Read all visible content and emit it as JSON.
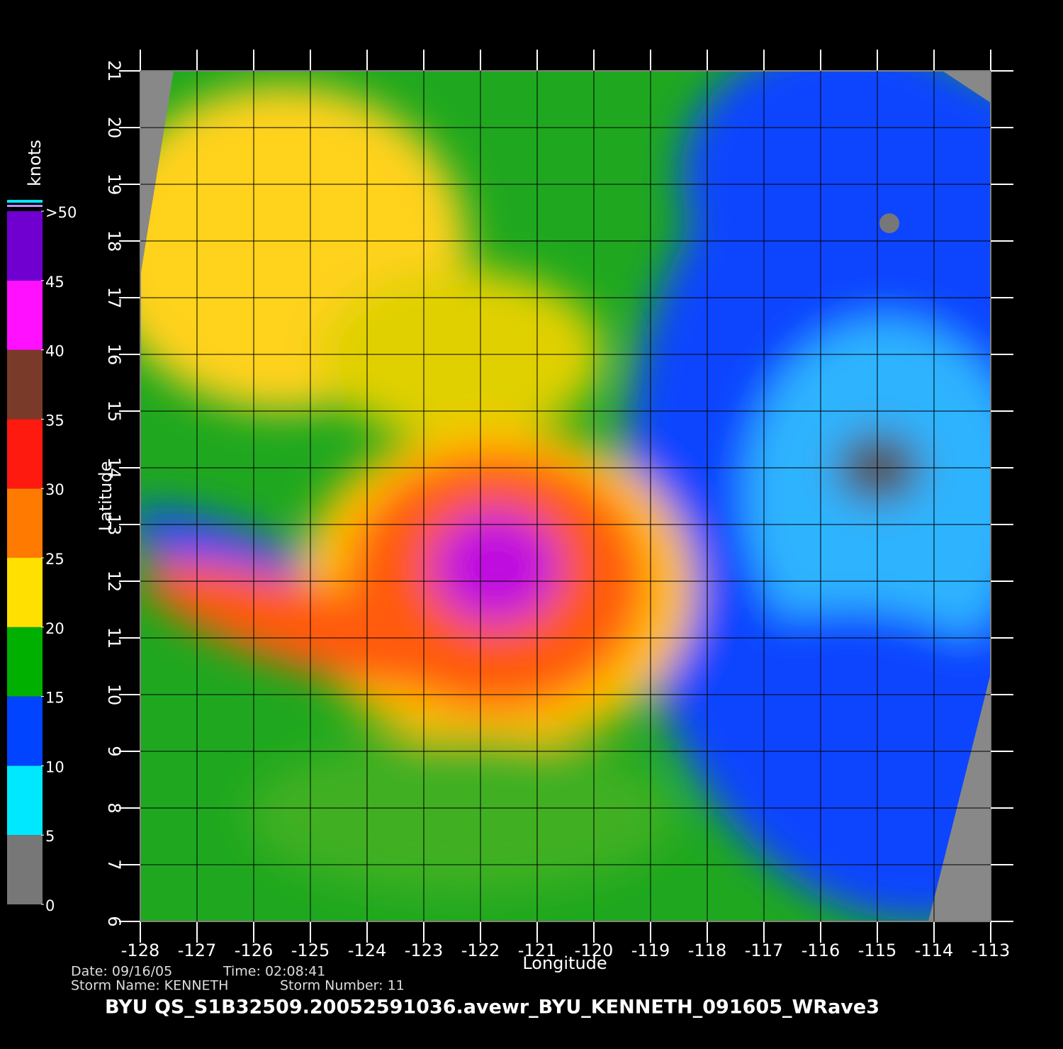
{
  "title": "BYU  QS_S1B32509.20052591036.avewr_BYU_KENNETH_091605_WRave3",
  "info": {
    "date": "Date:  09/16/05",
    "time": "Time:  02:08:41",
    "storm_name": "Storm  Name:  KENNETH",
    "storm_number": "Storm  Number:  11"
  },
  "map": {
    "x_label": "Longitude",
    "y_label": "Latitude",
    "xlim": [
      -128,
      -113
    ],
    "ylim": [
      6,
      21
    ],
    "xticks": [
      -128,
      -127,
      -126,
      -125,
      -124,
      -123,
      -122,
      -121,
      -120,
      -119,
      -118,
      -117,
      -116,
      -115,
      -114,
      -113
    ],
    "yticks": [
      6,
      7,
      8,
      9,
      10,
      11,
      12,
      13,
      14,
      15,
      16,
      17,
      18,
      19,
      20,
      21
    ],
    "grid": true
  },
  "colorbar": {
    "unit": "knots",
    "lim": [
      0,
      50
    ],
    "ticks": [
      0,
      5,
      10,
      15,
      20,
      25,
      30,
      35,
      40,
      45,
      {
        "value": 50,
        "label": ">50"
      }
    ],
    "colors": [
      "#777777",
      "#00e8ff",
      "#0044ff",
      "#00b000",
      "#ffe000",
      "#ff7a00",
      "#ff1a10",
      "#7a3a2a",
      "#ff10ff",
      "#7000d0"
    ]
  }
}
